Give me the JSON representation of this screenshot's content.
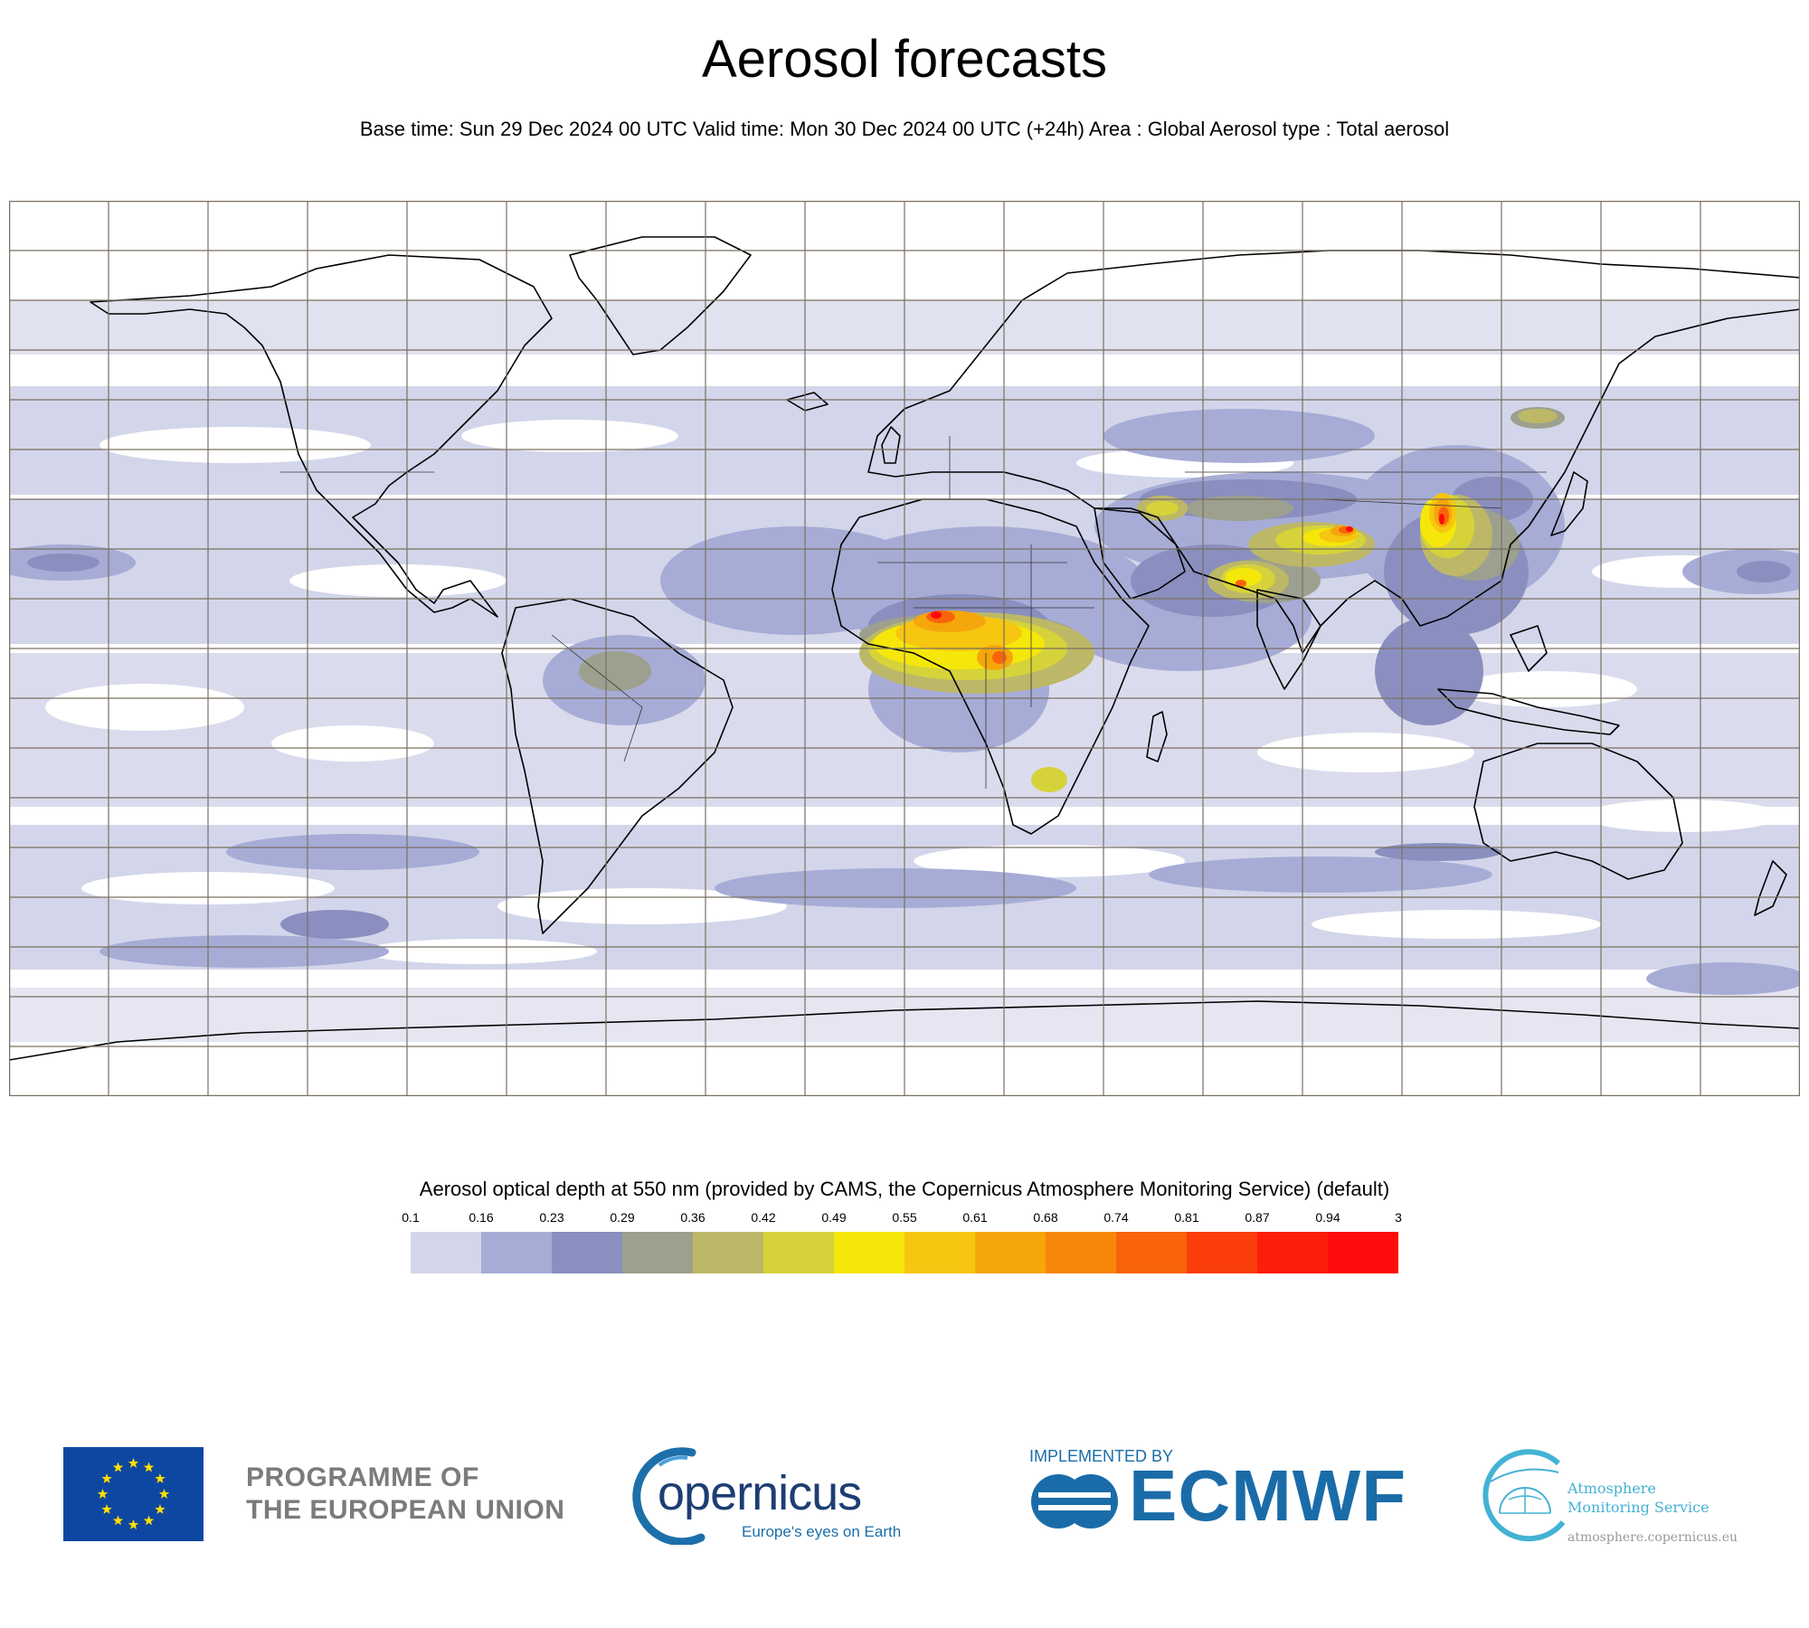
{
  "header": {
    "title": "Aerosol forecasts",
    "subtitle": "Base time: Sun 29 Dec 2024 00 UTC Valid time: Mon 30 Dec 2024 00 UTC (+24h) Area : Global Aerosol type : Total aerosol"
  },
  "map": {
    "projection": "equirectangular",
    "area": "Global",
    "grid": "10 degree latitude/longitude lines",
    "ocean_color": "#ffffff",
    "coastline_color": "#000000"
  },
  "legend": {
    "title": "Aerosol optical depth at 550 nm (provided by CAMS, the Copernicus Atmosphere Monitoring Service) (default)",
    "ticks": [
      "0.1",
      "0.16",
      "0.23",
      "0.29",
      "0.36",
      "0.42",
      "0.49",
      "0.55",
      "0.61",
      "0.68",
      "0.74",
      "0.81",
      "0.87",
      "0.94",
      "3"
    ],
    "colors": [
      "#d3d6ea",
      "#a7acd6",
      "#8a8fbf",
      "#9da08e",
      "#bdb867",
      "#d6d33a",
      "#f5e70a",
      "#f6c610",
      "#f5a60b",
      "#f7870b",
      "#f9640a",
      "#fb3d0a",
      "#fc1e0a",
      "#fe0b0b"
    ]
  },
  "logos": {
    "eu_line1": "PROGRAMME OF",
    "eu_line2": "THE EUROPEAN UNION",
    "copernicus_word": "opernicus",
    "copernicus_tagline": "Europe's eyes on Earth",
    "ecmwf_implemented": "IMPLEMENTED BY",
    "ecmwf_word": "ECMWF",
    "cams_line1": "Atmosphere",
    "cams_line2": "Monitoring Service",
    "cams_url": "atmosphere.copernicus.eu"
  }
}
